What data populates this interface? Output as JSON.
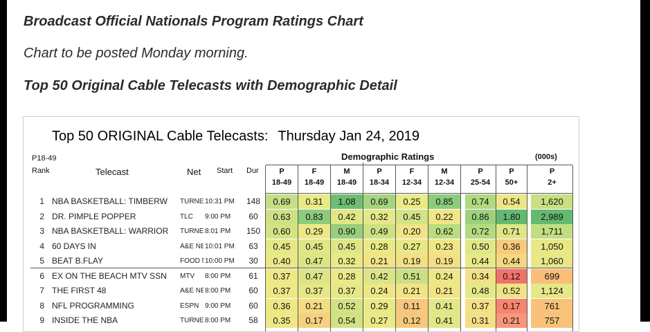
{
  "page": {
    "headline": "Broadcast Official Nationals Program Ratings Chart",
    "note": "Chart to be posted Monday morning.",
    "subheadline": "Top 50 Original Cable Telecasts with Demographic Detail"
  },
  "chart": {
    "title_main": "Top 50 ORIGINAL Cable Telecasts:",
    "title_date": "Thursday Jan 24, 2019",
    "label_p1849": "P18-49",
    "label_rank": "Rank",
    "label_telecast": "Telecast",
    "label_net": "Net",
    "label_start": "Start",
    "label_dur": "Dur",
    "group_demo": "Demographic Ratings",
    "group_000s": "(000s)",
    "columns": [
      {
        "top": "P",
        "bottom": "18-49"
      },
      {
        "top": "F",
        "bottom": "18-49"
      },
      {
        "top": "M",
        "bottom": "18-49"
      },
      {
        "top": "P",
        "bottom": "18-34"
      },
      {
        "top": "F",
        "bottom": "12-34"
      },
      {
        "top": "M",
        "bottom": "12-34"
      },
      {
        "top": "P",
        "bottom": "25-54"
      },
      {
        "top": "P",
        "bottom": "50+"
      },
      {
        "top": "P",
        "bottom": "2+"
      }
    ],
    "rows": [
      {
        "rank": "1",
        "telecast": "NBA BASKETBALL: TIMBERW",
        "net": "TURNER",
        "start": "10:31 PM",
        "dur": "148",
        "values": [
          "0.69",
          "0.31",
          "1.08",
          "0.69",
          "0.25",
          "0.85",
          "0.74",
          "0.54",
          "1,620"
        ],
        "colors": [
          "#c5df86",
          "#e8ea86",
          "#6dbd74",
          "#a6d47e",
          "#ecea86",
          "#8dcc7c",
          "#b1d97f",
          "#eee587",
          "#c8e083"
        ]
      },
      {
        "rank": "2",
        "telecast": "DR. PIMPLE POPPER",
        "net": "TLC",
        "start": "9:00 PM",
        "dur": "60",
        "values": [
          "0.63",
          "0.83",
          "0.42",
          "0.32",
          "0.45",
          "0.22",
          "0.86",
          "1.80",
          "2,989"
        ],
        "colors": [
          "#cde184",
          "#8ccb7a",
          "#e0e787",
          "#e4e888",
          "#d4e385",
          "#f0e686",
          "#9dd27d",
          "#64b970",
          "#64b970"
        ]
      },
      {
        "rank": "3",
        "telecast": "NBA BASKETBALL: WARRIOR",
        "net": "TURNER",
        "start": "8:01 PM",
        "dur": "150",
        "values": [
          "0.60",
          "0.29",
          "0.90",
          "0.49",
          "0.20",
          "0.62",
          "0.72",
          "0.71",
          "1,711"
        ],
        "colors": [
          "#d3e384",
          "#ece987",
          "#98cf7c",
          "#cce183",
          "#f1e486",
          "#b9dc80",
          "#b4da80",
          "#dfe686",
          "#c2de82"
        ]
      },
      {
        "rank": "4",
        "telecast": "60 DAYS IN",
        "net": "A&E NE",
        "start": "10:01 PM",
        "dur": "63",
        "values": [
          "0.45",
          "0.45",
          "0.45",
          "0.28",
          "0.27",
          "0.23",
          "0.50",
          "0.36",
          "1,050"
        ],
        "colors": [
          "#e6e887",
          "#dfe686",
          "#dfe686",
          "#eae986",
          "#e8e887",
          "#f0e686",
          "#e0e787",
          "#f9c97c",
          "#e8e887"
        ]
      },
      {
        "rank": "5",
        "telecast": "BEAT B.FLAY",
        "net": "FOOD N",
        "start": "10:00 PM",
        "dur": "30",
        "values": [
          "0.40",
          "0.47",
          "0.32",
          "0.21",
          "0.19",
          "0.19",
          "0.44",
          "0.44",
          "1,060"
        ],
        "colors": [
          "#ebe987",
          "#dce586",
          "#e9e987",
          "#f1e486",
          "#f3e086",
          "#f3e086",
          "#e9e987",
          "#f5d880",
          "#e8e887"
        ]
      },
      {
        "rank": "6",
        "telecast": "EX ON THE BEACH MTV SSN",
        "net": "MTV",
        "start": "8:00 PM",
        "dur": "61",
        "values": [
          "0.37",
          "0.47",
          "0.28",
          "0.42",
          "0.51",
          "0.24",
          "0.34",
          "0.12",
          "699"
        ],
        "colors": [
          "#eee886",
          "#dce586",
          "#ece987",
          "#dbe586",
          "#cbe084",
          "#eee786",
          "#f3e186",
          "#f3716b",
          "#f8be7a"
        ]
      },
      {
        "rank": "7",
        "telecast": "THE FIRST 48",
        "net": "A&E NE",
        "start": "8:00 PM",
        "dur": "60",
        "values": [
          "0.37",
          "0.37",
          "0.37",
          "0.24",
          "0.21",
          "0.21",
          "0.48",
          "0.52",
          "1,124"
        ],
        "colors": [
          "#eee886",
          "#e6e887",
          "#e6e887",
          "#eee786",
          "#f1e486",
          "#f1e486",
          "#e5e887",
          "#f0e386",
          "#e6e887"
        ]
      },
      {
        "rank": "8",
        "telecast": "NFL PROGRAMMING",
        "net": "ESPN",
        "start": "9:00 PM",
        "dur": "60",
        "values": [
          "0.36",
          "0.21",
          "0.52",
          "0.29",
          "0.11",
          "0.41",
          "0.37",
          "0.17",
          "761"
        ],
        "colors": [
          "#efe786",
          "#f3dc82",
          "#d3e384",
          "#e9e987",
          "#f6c77d",
          "#e0e787",
          "#f3e186",
          "#f7846f",
          "#f9c27b"
        ]
      },
      {
        "rank": "9",
        "telecast": "INSIDE THE NBA",
        "net": "TURNER",
        "start": "8:00 PM",
        "dur": "58",
        "values": [
          "0.35",
          "0.17",
          "0.54",
          "0.27",
          "0.12",
          "0.41",
          "0.31",
          "0.21",
          "757"
        ],
        "colors": [
          "#efe786",
          "#f5d07f",
          "#d0e284",
          "#ebe987",
          "#f5c97d",
          "#e0e787",
          "#f4df84",
          "#f8967a",
          "#f9c27b"
        ]
      }
    ]
  }
}
